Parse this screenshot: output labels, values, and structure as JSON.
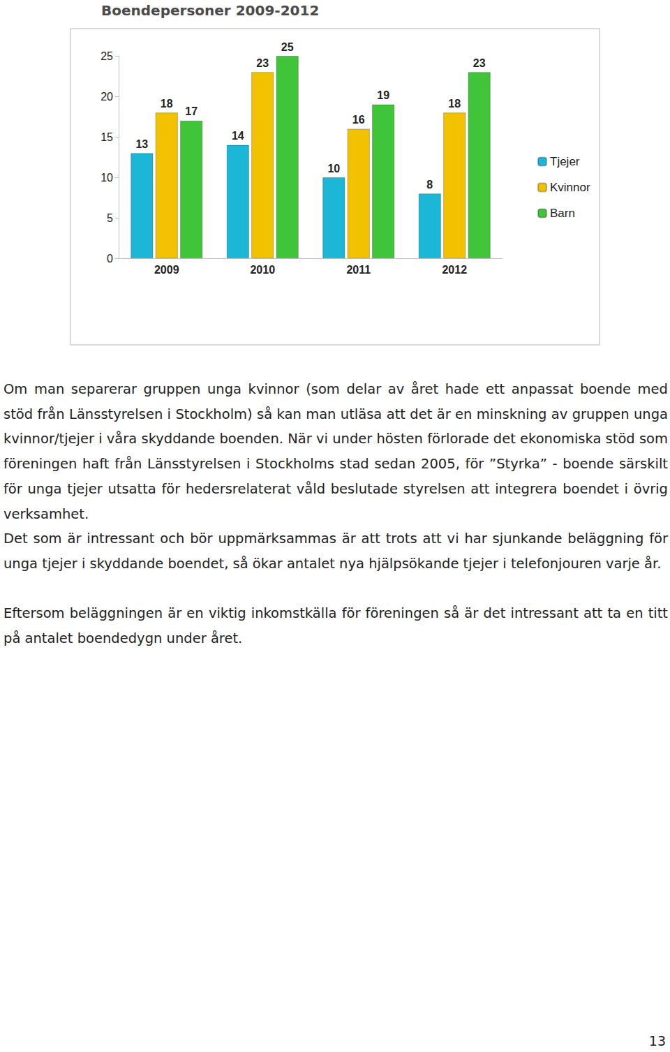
{
  "chart_data": {
    "type": "bar",
    "title": "Boendepersoner 2009-2012",
    "categories": [
      "2009",
      "2010",
      "2011",
      "2012"
    ],
    "series": [
      {
        "name": "Tjejer",
        "color": "#1cb6d6",
        "values": [
          13,
          14,
          10,
          8
        ]
      },
      {
        "name": "Kvinnor",
        "color": "#f2c200",
        "values": [
          18,
          23,
          16,
          18
        ]
      },
      {
        "name": "Barn",
        "color": "#3fc43a",
        "values": [
          17,
          25,
          19,
          23
        ]
      }
    ],
    "ylim": [
      0,
      25
    ],
    "yticks": [
      0,
      5,
      10,
      15,
      20,
      25
    ],
    "grid": false,
    "legend": "right",
    "data_labels": true
  },
  "document": {
    "paragraphs": [
      "Om man separerar gruppen unga kvinnor (som delar av året hade ett anpassat boende med stöd från Länsstyrelsen i Stockholm) så kan man utläsa att det är en minskning av gruppen unga kvinnor/tjejer i våra skyddande boenden. När vi under hösten förlorade det ekonomiska stöd som föreningen haft från Länsstyrelsen i Stockholms stad sedan 2005, för ”Styrka” - boende särskilt för unga tjejer utsatta för hedersrelaterat våld beslutade styrelsen att integrera boendet i övrig verksamhet.",
      "Det som är intressant och bör uppmärksammas är att trots att vi har sjunkande beläggning för unga tjejer i skyddande boendet, så ökar antalet nya hjälpsökande tjejer i telefonjouren varje år.",
      "Eftersom beläggningen är en viktig inkomstkälla för föreningen så är det intressant att ta en titt på antalet boendedygn under året."
    ],
    "page_number": "13"
  }
}
